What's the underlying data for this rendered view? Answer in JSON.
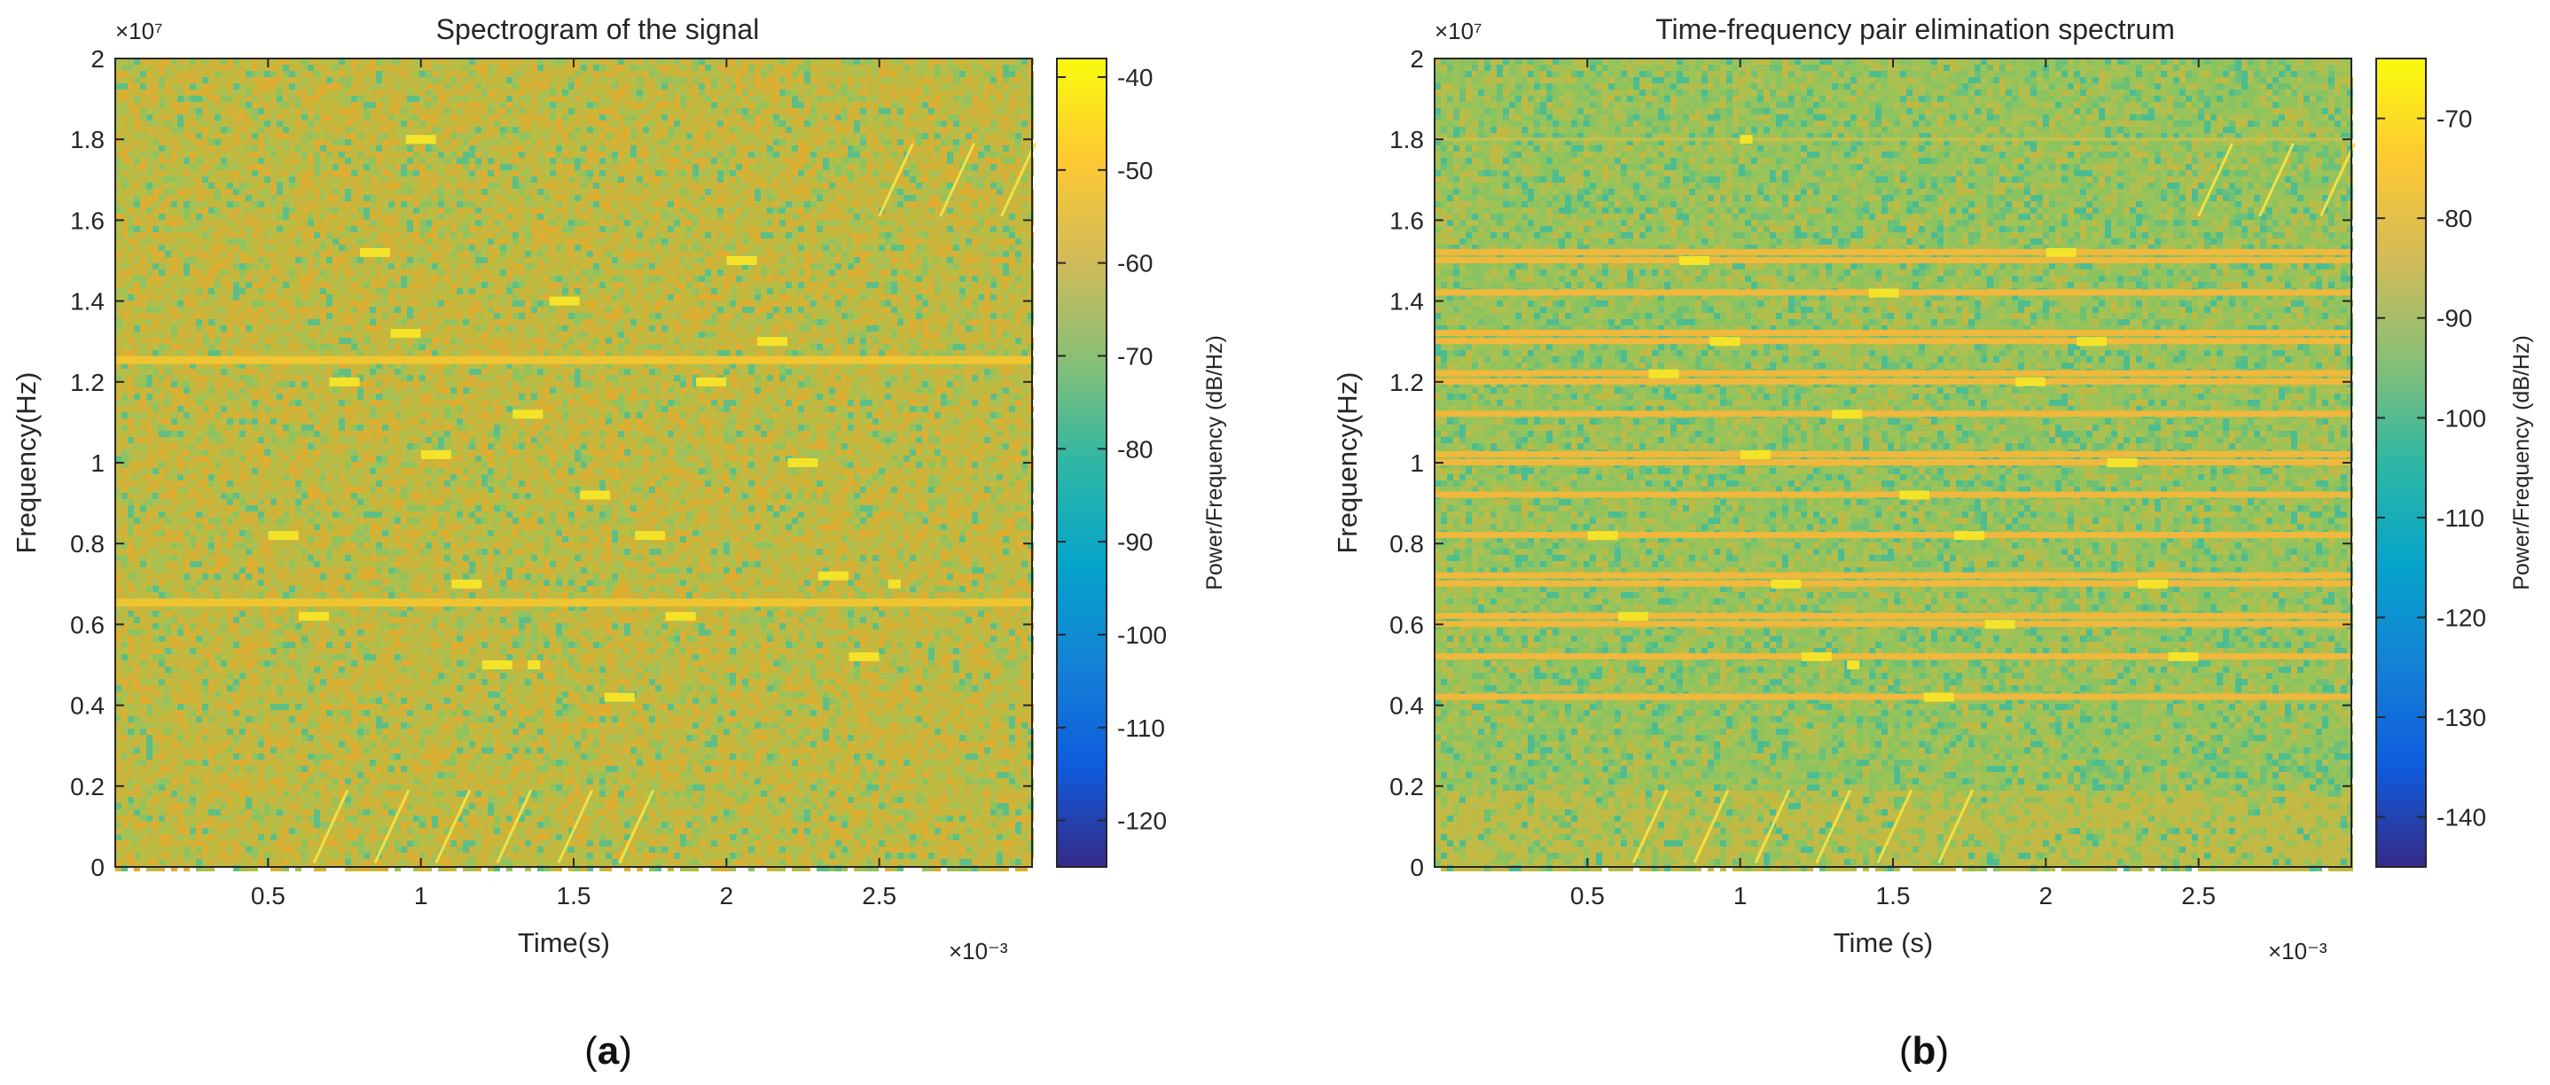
{
  "chart_data": [
    {
      "type": "heatmap",
      "panel_label_open": "(",
      "panel_label": "a",
      "panel_label_close": ")",
      "title": "Spectrogram of the signal",
      "xlabel": "Time(s)",
      "ylabel": "Frequency(Hz)",
      "x_exponent_label": "×10⁻³",
      "y_exponent_label": "×10⁷",
      "xlim": [
        0,
        3.0
      ],
      "ylim": [
        0,
        2.0
      ],
      "xticks": [
        0.5,
        1,
        1.5,
        2,
        2.5
      ],
      "xtick_labels": [
        "0.5",
        "1",
        "1.5",
        "2",
        "2.5"
      ],
      "yticks": [
        0,
        0.2,
        0.4,
        0.6,
        0.8,
        1,
        1.2,
        1.4,
        1.6,
        1.8,
        2
      ],
      "ytick_labels": [
        "0",
        "0.2",
        "0.4",
        "0.6",
        "0.8",
        "1",
        "1.2",
        "1.4",
        "1.6",
        "1.8",
        "2"
      ],
      "colorbar": {
        "label": "Power/Frequency (dB/Hz)",
        "range": [
          -125,
          -38
        ],
        "ticks": [
          -40,
          -50,
          -60,
          -70,
          -80,
          -90,
          -100,
          -110,
          -120
        ],
        "tick_labels": [
          "-40",
          "-50",
          "-60",
          "-70",
          "-80",
          "-90",
          "-100",
          "-110",
          "-120"
        ]
      },
      "background_colors": [
        "#c9b53c",
        "#b9bd45",
        "#a6c054",
        "#d8b036",
        "#8fc35f",
        "#e1ad30",
        "#5dbf86"
      ],
      "background_weights": [
        30,
        22,
        14,
        12,
        8,
        8,
        6
      ],
      "continuous_lines": [
        {
          "freq": 1.255
        },
        {
          "freq": 0.655
        }
      ],
      "bursts": [
        {
          "t": 1.0,
          "f": 1.8
        },
        {
          "t": 0.85,
          "f": 1.52
        },
        {
          "t": 2.05,
          "f": 1.5
        },
        {
          "t": 1.47,
          "f": 1.4
        },
        {
          "t": 0.95,
          "f": 1.32
        },
        {
          "t": 2.15,
          "f": 1.3
        },
        {
          "t": 0.75,
          "f": 1.2
        },
        {
          "t": 1.95,
          "f": 1.2
        },
        {
          "t": 1.35,
          "f": 1.12
        },
        {
          "t": 1.05,
          "f": 1.02
        },
        {
          "t": 2.25,
          "f": 1.0
        },
        {
          "t": 1.57,
          "f": 0.92
        },
        {
          "t": 0.55,
          "f": 0.82
        },
        {
          "t": 1.75,
          "f": 0.82
        },
        {
          "t": 2.35,
          "f": 0.72
        },
        {
          "t": 1.15,
          "f": 0.7
        },
        {
          "t": 2.55,
          "f": 0.7,
          "short": true
        },
        {
          "t": 0.65,
          "f": 0.62
        },
        {
          "t": 1.85,
          "f": 0.62
        },
        {
          "t": 2.45,
          "f": 0.52
        },
        {
          "t": 1.25,
          "f": 0.5
        },
        {
          "t": 1.37,
          "f": 0.5,
          "short": true
        },
        {
          "t": 1.65,
          "f": 0.42
        }
      ],
      "chirps_low": [
        0.65,
        0.85,
        1.05,
        1.25,
        1.45,
        1.65
      ],
      "chirps_high": [
        2.5,
        2.7,
        2.9
      ]
    },
    {
      "type": "heatmap",
      "panel_label_open": "(",
      "panel_label": "b",
      "panel_label_close": ")",
      "title": "Time-frequency pair elimination spectrum",
      "xlabel": "Time (s)",
      "ylabel": "Frequency(Hz)",
      "x_exponent_label": "×10⁻³",
      "y_exponent_label": "×10⁷",
      "xlim": [
        0,
        3.0
      ],
      "ylim": [
        0,
        2.0
      ],
      "xticks": [
        0.5,
        1,
        1.5,
        2,
        2.5
      ],
      "xtick_labels": [
        "0.5",
        "1",
        "1.5",
        "2",
        "2.5"
      ],
      "yticks": [
        0,
        0.2,
        0.4,
        0.6,
        0.8,
        1,
        1.2,
        1.4,
        1.6,
        1.8,
        2
      ],
      "ytick_labels": [
        "0",
        "0.2",
        "0.4",
        "0.6",
        "0.8",
        "1",
        "1.2",
        "1.4",
        "1.6",
        "1.8",
        "2"
      ],
      "colorbar": {
        "label": "Power/Frequency (dB/Hz)",
        "range": [
          -145,
          -64
        ],
        "ticks": [
          -70,
          -80,
          -90,
          -100,
          -110,
          -120,
          -130,
          -140
        ],
        "tick_labels": [
          "-70",
          "-80",
          "-90",
          "-100",
          "-110",
          "-120",
          "-130",
          "-140"
        ]
      },
      "background_colors": [
        "#9cc358",
        "#8bc361",
        "#b0bf4f",
        "#6cc077",
        "#c2b942",
        "#4cbc91"
      ],
      "background_weights": [
        30,
        24,
        16,
        10,
        10,
        10
      ],
      "bottom_band": {
        "f_top": 0.19,
        "color": "#c2ba44"
      },
      "continuous_lines": [
        {
          "freq": 1.52
        },
        {
          "freq": 1.5
        },
        {
          "freq": 1.42
        },
        {
          "freq": 1.32
        },
        {
          "freq": 1.3
        },
        {
          "freq": 1.22
        },
        {
          "freq": 1.2
        },
        {
          "freq": 1.12
        },
        {
          "freq": 1.02
        },
        {
          "freq": 1.0
        },
        {
          "freq": 0.92
        },
        {
          "freq": 0.82
        },
        {
          "freq": 0.72
        },
        {
          "freq": 0.7
        },
        {
          "freq": 0.62
        },
        {
          "freq": 0.6
        },
        {
          "freq": 0.52
        },
        {
          "freq": 0.42
        }
      ],
      "faint_lines": [
        {
          "freq": 1.8
        }
      ],
      "bursts": [
        {
          "t": 1.02,
          "f": 1.8,
          "short": true
        },
        {
          "t": 0.85,
          "f": 1.5
        },
        {
          "t": 2.05,
          "f": 1.52
        },
        {
          "t": 1.47,
          "f": 1.42
        },
        {
          "t": 0.95,
          "f": 1.3
        },
        {
          "t": 2.15,
          "f": 1.3
        },
        {
          "t": 0.75,
          "f": 1.22
        },
        {
          "t": 1.95,
          "f": 1.2
        },
        {
          "t": 1.35,
          "f": 1.12
        },
        {
          "t": 1.05,
          "f": 1.02
        },
        {
          "t": 2.25,
          "f": 1.0
        },
        {
          "t": 1.57,
          "f": 0.92
        },
        {
          "t": 0.55,
          "f": 0.82
        },
        {
          "t": 1.75,
          "f": 0.82
        },
        {
          "t": 2.35,
          "f": 0.7
        },
        {
          "t": 1.15,
          "f": 0.7
        },
        {
          "t": 0.65,
          "f": 0.62
        },
        {
          "t": 1.85,
          "f": 0.6
        },
        {
          "t": 2.45,
          "f": 0.52
        },
        {
          "t": 1.25,
          "f": 0.52
        },
        {
          "t": 1.37,
          "f": 0.5,
          "short": true
        },
        {
          "t": 1.65,
          "f": 0.42
        }
      ],
      "chirps_low": [
        0.65,
        0.85,
        1.05,
        1.25,
        1.45,
        1.65
      ],
      "chirps_high": [
        2.5,
        2.7,
        2.9
      ]
    }
  ],
  "colors": {
    "burst": "#f5e32a",
    "line": "#efc531",
    "line_b": "#f0b83c",
    "faint_line": "#c8c24a",
    "chirp": "#f2e046",
    "axis": "#262626",
    "frame": "#262626",
    "colorbar_stops": [
      "#352a87",
      "#0f5cdd",
      "#1481d6",
      "#06a4ca",
      "#2eb7a4",
      "#87bf77",
      "#d1bb59",
      "#fec832",
      "#f9fb0e"
    ]
  }
}
